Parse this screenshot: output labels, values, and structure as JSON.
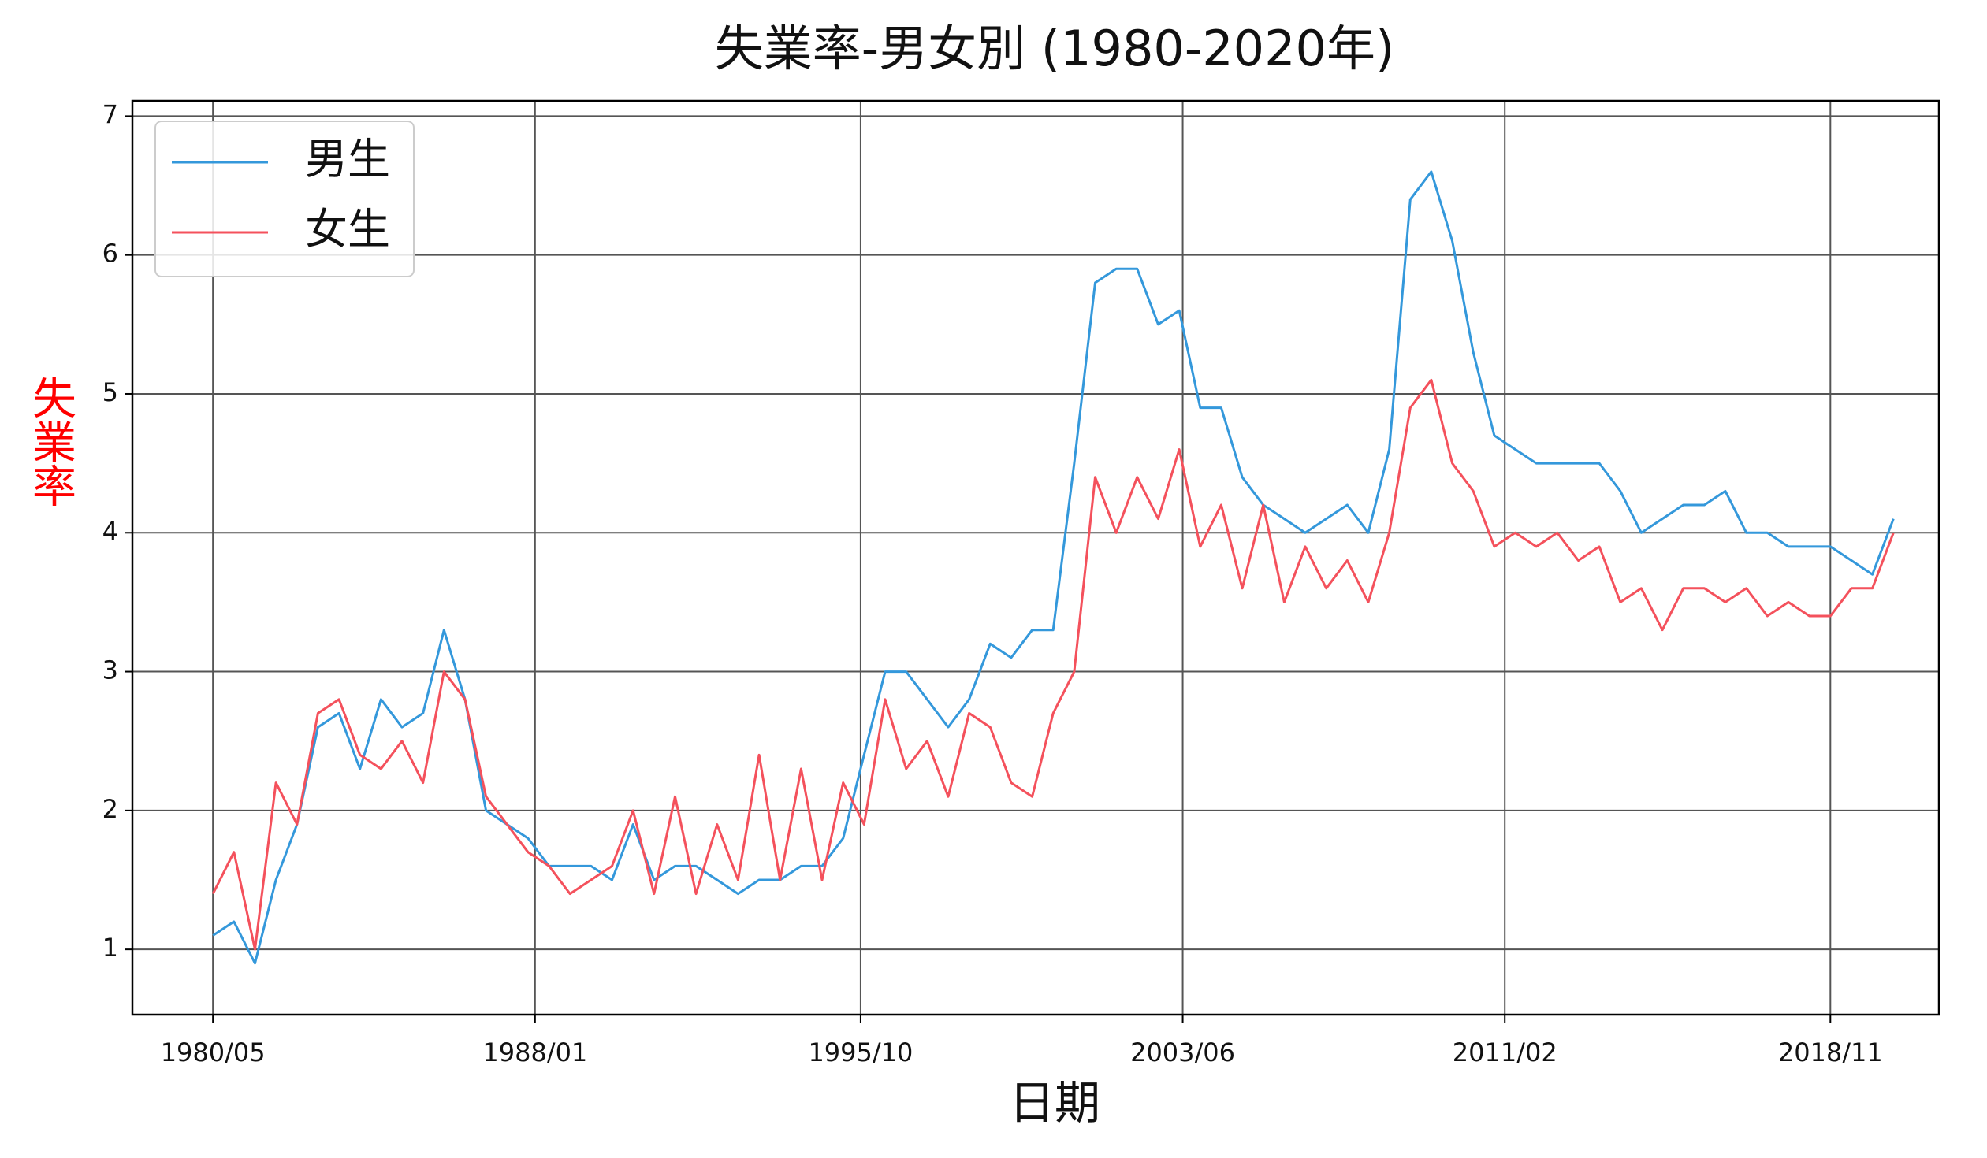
{
  "chart_data": {
    "type": "line",
    "title": "失業率-男女別 (1980-2020年)",
    "x_label": "日期",
    "y_label": "失業率",
    "y_label_color": "#ff0000",
    "x": [
      "1980/05",
      "1980/11",
      "1981/05",
      "1981/11",
      "1982/05",
      "1982/11",
      "1983/05",
      "1983/11",
      "1984/05",
      "1984/11",
      "1985/05",
      "1985/11",
      "1986/05",
      "1986/11",
      "1987/05",
      "1987/11",
      "1988/05",
      "1988/11",
      "1989/05",
      "1989/11",
      "1990/05",
      "1990/11",
      "1991/05",
      "1991/11",
      "1992/05",
      "1992/11",
      "1993/05",
      "1993/11",
      "1994/05",
      "1994/11",
      "1995/05",
      "1995/11",
      "1996/05",
      "1996/11",
      "1997/05",
      "1997/11",
      "1998/05",
      "1998/11",
      "1999/05",
      "1999/11",
      "2000/05",
      "2000/11",
      "2001/05",
      "2001/11",
      "2002/05",
      "2002/11",
      "2003/05",
      "2003/11",
      "2004/05",
      "2004/11",
      "2005/05",
      "2005/11",
      "2006/05",
      "2006/11",
      "2007/05",
      "2007/11",
      "2008/05",
      "2008/11",
      "2009/05",
      "2009/11",
      "2010/05",
      "2010/11",
      "2011/05",
      "2011/11",
      "2012/05",
      "2012/11",
      "2013/05",
      "2013/11",
      "2014/05",
      "2014/11",
      "2015/05",
      "2015/11",
      "2016/05",
      "2016/11",
      "2017/05",
      "2017/11",
      "2018/05",
      "2018/11",
      "2019/05",
      "2019/11",
      "2020/05"
    ],
    "series": [
      {
        "name": "男生",
        "color": "#3498db",
        "values": [
          1.1,
          1.2,
          0.9,
          1.5,
          1.9,
          2.6,
          2.7,
          2.3,
          2.8,
          2.6,
          2.7,
          3.3,
          2.8,
          2.0,
          1.9,
          1.8,
          1.6,
          1.6,
          1.6,
          1.5,
          1.9,
          1.5,
          1.6,
          1.6,
          1.5,
          1.4,
          1.5,
          1.5,
          1.6,
          1.6,
          1.8,
          2.4,
          3.0,
          3.0,
          2.8,
          2.6,
          2.8,
          3.2,
          3.1,
          3.3,
          3.3,
          4.5,
          5.8,
          5.9,
          5.9,
          5.5,
          5.6,
          4.9,
          4.9,
          4.4,
          4.2,
          4.1,
          4.0,
          4.1,
          4.2,
          4.0,
          4.6,
          6.4,
          6.6,
          6.1,
          5.3,
          4.7,
          4.6,
          4.5,
          4.5,
          4.5,
          4.5,
          4.3,
          4.0,
          4.1,
          4.2,
          4.2,
          4.3,
          4.0,
          4.0,
          3.9,
          3.9,
          3.9,
          3.8,
          3.7,
          4.1
        ]
      },
      {
        "name": "女生",
        "color": "#f4515c",
        "values": [
          1.4,
          1.7,
          1.0,
          2.2,
          1.9,
          2.7,
          2.8,
          2.4,
          2.3,
          2.5,
          2.2,
          3.0,
          2.8,
          2.1,
          1.9,
          1.7,
          1.6,
          1.4,
          1.5,
          1.6,
          2.0,
          1.4,
          2.1,
          1.4,
          1.9,
          1.5,
          2.4,
          1.5,
          2.3,
          1.5,
          2.2,
          1.9,
          2.8,
          2.3,
          2.5,
          2.1,
          2.7,
          2.6,
          2.2,
          2.1,
          2.7,
          3.0,
          4.4,
          4.0,
          4.4,
          4.1,
          4.6,
          3.9,
          4.2,
          3.6,
          4.2,
          3.5,
          3.9,
          3.6,
          3.8,
          3.5,
          4.0,
          4.9,
          5.1,
          4.5,
          4.3,
          3.9,
          4.0,
          3.9,
          4.0,
          3.8,
          3.9,
          3.5,
          3.6,
          3.3,
          3.6,
          3.6,
          3.5,
          3.6,
          3.4,
          3.5,
          3.4,
          3.4,
          3.6,
          3.6,
          4.0
        ]
      }
    ],
    "xlim": [
      "1978/06",
      "2021/06"
    ],
    "xticks": [
      "1980/05",
      "1988/01",
      "1995/10",
      "2003/06",
      "2011/02",
      "2018/11"
    ],
    "ylim": [
      0.53,
      7.11
    ],
    "yticks": [
      1,
      2,
      3,
      4,
      5,
      6,
      7
    ],
    "grid": true,
    "legend": "upper left"
  }
}
